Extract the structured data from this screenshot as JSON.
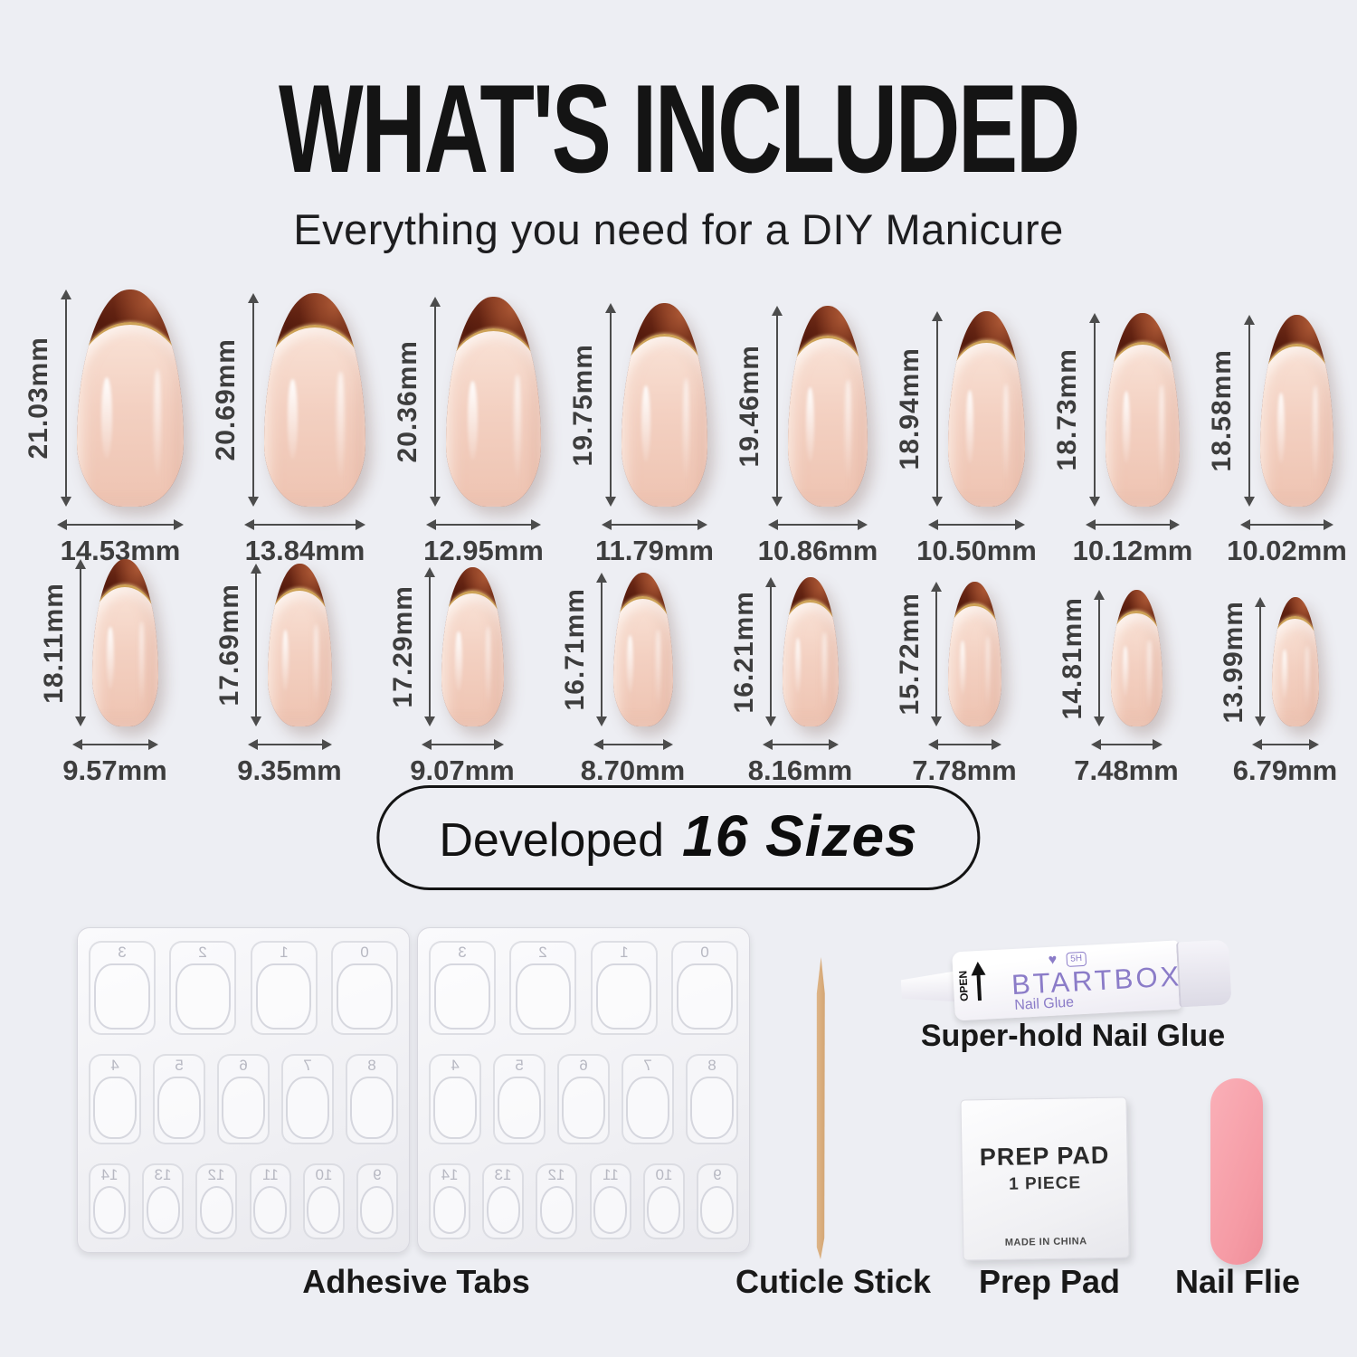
{
  "title": "WHAT'S INCLUDED",
  "subtitle": "Everything you need for a DIY Manicure",
  "sizes_badge": {
    "prefix": "Developed",
    "highlight": "16 Sizes"
  },
  "nails": {
    "row1": [
      {
        "label_h": "21.03mm",
        "label_w": "14.53mm",
        "h_mm": 21.03,
        "w_mm": 14.53
      },
      {
        "label_h": "20.69mm",
        "label_w": "13.84mm",
        "h_mm": 20.69,
        "w_mm": 13.84
      },
      {
        "label_h": "20.36mm",
        "label_w": "12.95mm",
        "h_mm": 20.36,
        "w_mm": 12.95
      },
      {
        "label_h": "19.75mm",
        "label_w": "11.79mm",
        "h_mm": 19.75,
        "w_mm": 11.79
      },
      {
        "label_h": "19.46mm",
        "label_w": "10.86mm",
        "h_mm": 19.46,
        "w_mm": 10.86
      },
      {
        "label_h": "18.94mm",
        "label_w": "10.50mm",
        "h_mm": 18.94,
        "w_mm": 10.5
      },
      {
        "label_h": "18.73mm",
        "label_w": "10.12mm",
        "h_mm": 18.73,
        "w_mm": 10.12
      },
      {
        "label_h": "18.58mm",
        "label_w": "10.02mm",
        "h_mm": 18.58,
        "w_mm": 10.02
      }
    ],
    "row2": [
      {
        "label_h": "18.11mm",
        "label_w": "9.57mm",
        "h_mm": 18.11,
        "w_mm": 9.57
      },
      {
        "label_h": "17.69mm",
        "label_w": "9.35mm",
        "h_mm": 17.69,
        "w_mm": 9.35
      },
      {
        "label_h": "17.29mm",
        "label_w": "9.07mm",
        "h_mm": 17.29,
        "w_mm": 9.07
      },
      {
        "label_h": "16.71mm",
        "label_w": "8.70mm",
        "h_mm": 16.71,
        "w_mm": 8.7
      },
      {
        "label_h": "16.21mm",
        "label_w": "8.16mm",
        "h_mm": 16.21,
        "w_mm": 8.16
      },
      {
        "label_h": "15.72mm",
        "label_w": "7.78mm",
        "h_mm": 15.72,
        "w_mm": 7.78
      },
      {
        "label_h": "14.81mm",
        "label_w": "7.48mm",
        "h_mm": 14.81,
        "w_mm": 7.48
      },
      {
        "label_h": "13.99mm",
        "label_w": "6.79mm",
        "h_mm": 13.99,
        "w_mm": 6.79
      }
    ]
  },
  "accessories": {
    "adhesive_tabs": {
      "label": "Adhesive Tabs",
      "sheet_count": 2,
      "tab_numbers": [
        [
          "3",
          "2",
          "1",
          "0"
        ],
        [
          "4",
          "5",
          "6",
          "7",
          "8"
        ],
        [
          "14",
          "13",
          "12",
          "11",
          "10",
          "9"
        ]
      ]
    },
    "cuticle_stick": {
      "label": "Cuticle Stick"
    },
    "nail_glue": {
      "label": "Super-hold Nail Glue",
      "brand": "BTARTBOX",
      "product": "Nail Glue",
      "open_text": "OPEN",
      "badge_text": "5H",
      "heart_icon": "♥"
    },
    "prep_pad": {
      "label": "Prep Pad",
      "line1": "PREP PAD",
      "line2": "1 PIECE",
      "line3": "MADE IN CHINA"
    },
    "nail_file": {
      "label": "Nail Flie"
    }
  },
  "colors": {
    "background": "#edeef3",
    "nail_tip_brown": "#5a1d0d",
    "nail_gold_line": "#cda257",
    "nail_base_nude": "#f3d0c1",
    "glue_brand_purple": "#8b7cc8",
    "file_pink": "#f59aa4",
    "measure_text": "#3d3d3d"
  }
}
